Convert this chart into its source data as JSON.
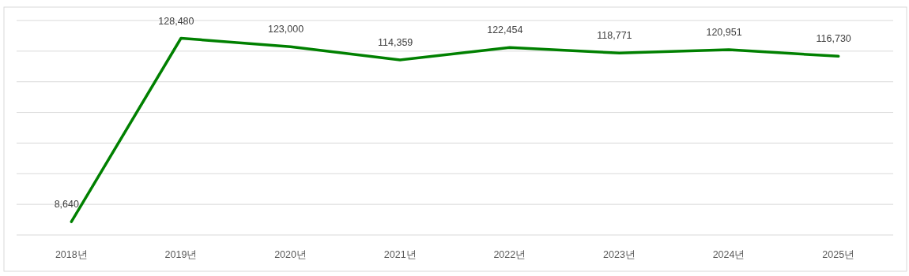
{
  "chart_data": {
    "type": "line",
    "categories": [
      "2018년",
      "2019년",
      "2020년",
      "2021년",
      "2022년",
      "2023년",
      "2024년",
      "2025년"
    ],
    "series": [
      {
        "color": "#008000",
        "values": [
          8640,
          128480,
          123000,
          114359,
          122454,
          118771,
          120951,
          116730
        ],
        "value_labels": [
          "8,640",
          "128,480",
          "123,000",
          "114,359",
          "122,454",
          "118,771",
          "120,951",
          "116,730"
        ]
      }
    ],
    "tick_labels": "x",
    "grid": "y",
    "marker": "none",
    "line_style": "solid"
  }
}
